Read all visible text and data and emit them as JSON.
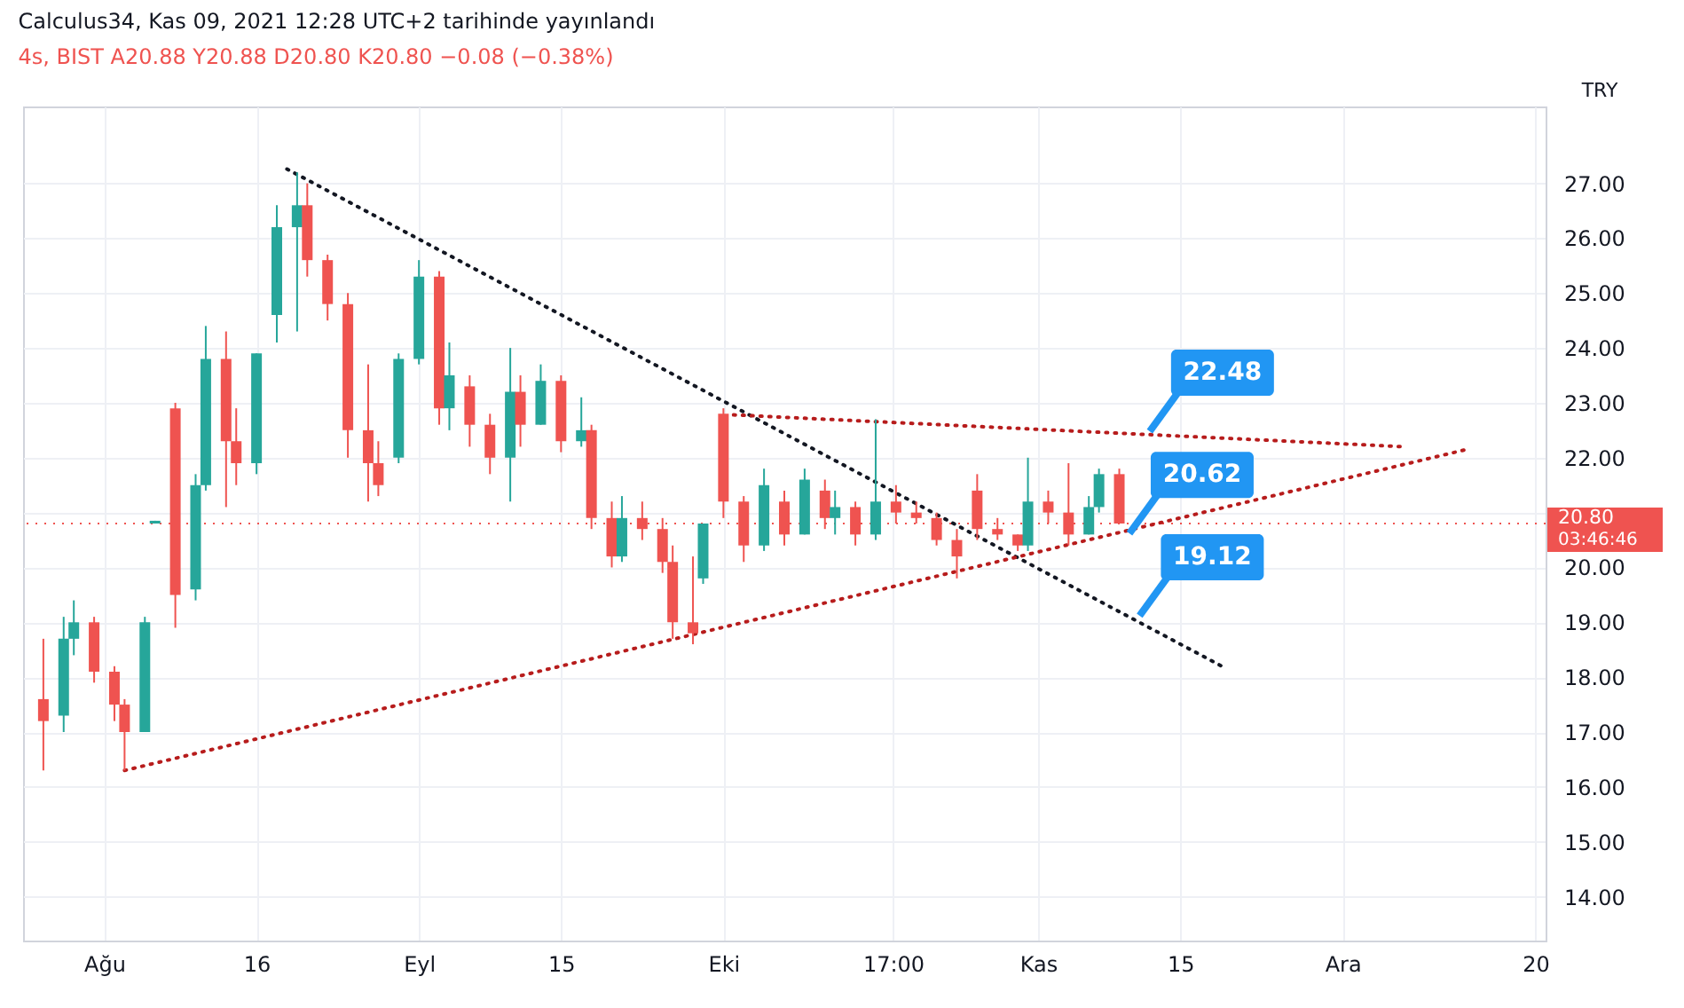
{
  "chart_data": {
    "type": "candlestick",
    "title": "Calculus34, Kas 09, 2021 12:28 UTC+2 tarihinde yayınlandı",
    "subtitle": "4s, BIST  A20.88  Y20.88  D20.80  K20.80  −0.08 (−0.38%)",
    "ylabel": "TRY",
    "x": [
      "2021-07-26",
      "2021-07-28",
      "2021-07-29",
      "2021-07-31",
      "2021-08-02",
      "2021-08-03",
      "2021-08-05",
      "2021-08-06",
      "2021-08-08",
      "2021-08-10",
      "2021-08-11",
      "2021-08-13",
      "2021-08-14",
      "2021-08-16",
      "2021-08-18",
      "2021-08-20",
      "2021-08-21",
      "2021-08-23",
      "2021-08-25",
      "2021-08-27",
      "2021-08-28",
      "2021-08-30",
      "2021-09-01",
      "2021-09-03",
      "2021-09-04",
      "2021-09-06",
      "2021-09-08",
      "2021-09-10",
      "2021-09-11",
      "2021-09-13",
      "2021-09-15",
      "2021-09-17",
      "2021-09-18",
      "2021-09-20",
      "2021-09-21",
      "2021-09-23",
      "2021-09-25",
      "2021-09-26",
      "2021-09-28",
      "2021-09-29",
      "2021-10-01",
      "2021-10-03",
      "2021-10-05",
      "2021-10-07",
      "2021-10-09",
      "2021-10-11",
      "2021-10-12",
      "2021-10-14",
      "2021-10-16",
      "2021-10-18",
      "2021-10-20",
      "2021-10-22",
      "2021-10-24",
      "2021-10-26",
      "2021-10-28",
      "2021-10-30",
      "2021-10-31",
      "2021-11-02",
      "2021-11-04",
      "2021-11-06",
      "2021-11-07",
      "2021-11-09"
    ],
    "ohlc": [
      [
        17.6,
        18.7,
        16.3,
        17.2
      ],
      [
        17.3,
        19.1,
        17.0,
        18.7
      ],
      [
        18.7,
        19.4,
        18.4,
        19.0
      ],
      [
        19.0,
        19.1,
        17.9,
        18.1
      ],
      [
        18.1,
        18.2,
        17.2,
        17.5
      ],
      [
        17.5,
        17.6,
        16.3,
        17.0
      ],
      [
        17.0,
        19.1,
        17.0,
        19.0
      ],
      [
        20.8,
        20.85,
        20.8,
        20.85
      ],
      [
        22.9,
        23.0,
        18.9,
        19.5
      ],
      [
        19.6,
        21.7,
        19.4,
        21.5
      ],
      [
        21.5,
        24.4,
        21.4,
        23.8
      ],
      [
        23.8,
        24.3,
        21.1,
        22.3
      ],
      [
        22.3,
        22.9,
        21.5,
        21.9
      ],
      [
        21.9,
        23.9,
        21.7,
        23.9
      ],
      [
        24.6,
        26.6,
        24.1,
        26.2
      ],
      [
        26.2,
        27.2,
        24.3,
        26.6
      ],
      [
        26.6,
        27.0,
        25.3,
        25.6
      ],
      [
        25.6,
        25.7,
        24.5,
        24.8
      ],
      [
        24.8,
        25.0,
        22.0,
        22.5
      ],
      [
        22.5,
        23.7,
        21.2,
        21.9
      ],
      [
        21.9,
        22.3,
        21.3,
        21.5
      ],
      [
        22.0,
        23.9,
        21.9,
        23.8
      ],
      [
        23.8,
        25.6,
        23.7,
        25.3
      ],
      [
        25.3,
        25.4,
        22.6,
        22.9
      ],
      [
        22.9,
        24.1,
        22.5,
        23.5
      ],
      [
        23.3,
        23.5,
        22.2,
        22.6
      ],
      [
        22.6,
        22.8,
        21.7,
        22.0
      ],
      [
        22.0,
        24.0,
        21.2,
        23.2
      ],
      [
        23.2,
        23.5,
        22.2,
        22.6
      ],
      [
        22.6,
        23.7,
        22.6,
        23.4
      ],
      [
        23.4,
        23.5,
        22.1,
        22.3
      ],
      [
        22.3,
        23.1,
        22.2,
        22.5
      ],
      [
        22.5,
        22.6,
        20.7,
        20.9
      ],
      [
        20.9,
        21.2,
        20.0,
        20.2
      ],
      [
        20.2,
        21.3,
        20.1,
        20.9
      ],
      [
        20.9,
        21.2,
        20.5,
        20.7
      ],
      [
        20.7,
        20.9,
        19.9,
        20.1
      ],
      [
        20.1,
        20.4,
        18.7,
        19.0
      ],
      [
        19.0,
        20.2,
        18.6,
        18.8
      ],
      [
        19.8,
        20.8,
        19.7,
        20.8
      ],
      [
        22.8,
        22.9,
        20.9,
        21.2
      ],
      [
        21.2,
        21.3,
        20.1,
        20.4
      ],
      [
        20.4,
        21.8,
        20.3,
        21.5
      ],
      [
        21.2,
        21.4,
        20.4,
        20.6
      ],
      [
        20.6,
        21.8,
        20.6,
        21.6
      ],
      [
        21.4,
        21.6,
        20.7,
        20.9
      ],
      [
        20.9,
        21.4,
        20.6,
        21.1
      ],
      [
        21.1,
        21.2,
        20.4,
        20.6
      ],
      [
        20.6,
        22.7,
        20.5,
        21.2
      ],
      [
        21.2,
        21.5,
        20.8,
        21.0
      ],
      [
        21.0,
        21.2,
        20.8,
        20.9
      ],
      [
        20.9,
        21.0,
        20.4,
        20.5
      ],
      [
        20.5,
        20.7,
        19.8,
        20.2
      ],
      [
        21.4,
        21.7,
        20.5,
        20.7
      ],
      [
        20.7,
        20.9,
        20.5,
        20.6
      ],
      [
        20.6,
        20.6,
        20.3,
        20.4
      ],
      [
        20.4,
        22.0,
        20.3,
        21.2
      ],
      [
        21.2,
        21.4,
        20.8,
        21.0
      ],
      [
        21.0,
        21.9,
        20.4,
        20.6
      ],
      [
        20.6,
        21.3,
        20.6,
        21.1
      ],
      [
        21.1,
        21.8,
        21.0,
        21.7
      ],
      [
        21.7,
        21.8,
        20.8,
        20.8
      ]
    ],
    "colors": [
      "#ef5350",
      "#26a69a",
      "#26a69a",
      "#ef5350",
      "#ef5350",
      "#ef5350",
      "#26a69a",
      "#26a69a",
      "#ef5350",
      "#26a69a",
      "#26a69a",
      "#ef5350",
      "#ef5350",
      "#26a69a",
      "#26a69a",
      "#26a69a",
      "#ef5350",
      "#ef5350",
      "#ef5350",
      "#ef5350",
      "#ef5350",
      "#26a69a",
      "#26a69a",
      "#ef5350",
      "#26a69a",
      "#ef5350",
      "#ef5350",
      "#26a69a",
      "#ef5350",
      "#26a69a",
      "#ef5350",
      "#26a69a",
      "#ef5350",
      "#ef5350",
      "#26a69a",
      "#ef5350",
      "#ef5350",
      "#ef5350",
      "#ef5350",
      "#26a69a",
      "#ef5350",
      "#ef5350",
      "#26a69a",
      "#ef5350",
      "#26a69a",
      "#ef5350",
      "#26a69a",
      "#ef5350",
      "#26a69a",
      "#ef5350",
      "#ef5350",
      "#ef5350",
      "#ef5350",
      "#ef5350",
      "#ef5350",
      "#ef5350",
      "#26a69a",
      "#ef5350",
      "#ef5350",
      "#26a69a",
      "#26a69a",
      "#ef5350"
    ],
    "series": [
      {
        "type": "line",
        "x": [
          "2021-08-19",
          "2021-11-19"
        ],
        "values": [
          27.26,
          18.21
        ],
        "color": "#131722"
      },
      {
        "type": "line",
        "x": [
          "2021-08-03",
          "2021-12-13"
        ],
        "values": [
          16.3,
          22.14
        ],
        "color": "#b71c1c"
      },
      {
        "type": "line",
        "x": [
          "2021-10-02",
          "2021-12-07"
        ],
        "values": [
          22.78,
          22.2
        ],
        "color": "#b71c1c"
      }
    ],
    "line_style": "dotted",
    "annotations": [
      {
        "text": "22.48",
        "x": "2021-11-12",
        "y": 22.48
      },
      {
        "text": "20.62",
        "x": "2021-11-10",
        "y": 20.62
      },
      {
        "text": "19.12",
        "x": "2021-11-11",
        "y": 19.12
      },
      "03:46:46"
    ],
    "ref_lines": [
      {
        "axis": "y",
        "value": 20.8,
        "label": "20.80",
        "color": "#ef5350",
        "line_style": "dotted"
      }
    ],
    "xlim": [
      "2021-07-24",
      "2021-12-21"
    ],
    "xticks": [
      {
        "value": "2021-08-01",
        "label": "Ağu"
      },
      {
        "value": "2021-08-16",
        "label": "16"
      },
      {
        "value": "2021-09-01",
        "label": "Eyl"
      },
      {
        "value": "2021-09-15",
        "label": "15"
      },
      {
        "value": "2021-10-01",
        "label": "Eki"
      },
      {
        "value": "2021-10-17T17:00",
        "label": "17:00"
      },
      {
        "value": "2021-11-01",
        "label": "Kas"
      },
      {
        "value": "2021-11-15",
        "label": "15"
      },
      {
        "value": "2021-12-01",
        "label": "Ara"
      },
      {
        "value": "2021-12-20",
        "label": "20"
      }
    ],
    "ylim": [
      13.2,
      28.4
    ],
    "yticks": [
      {
        "value": 14,
        "label": "14.00"
      },
      {
        "value": 15,
        "label": "15.00"
      },
      {
        "value": 16,
        "label": "16.00"
      },
      {
        "value": 17,
        "label": "17.00"
      },
      {
        "value": 18,
        "label": "18.00"
      },
      {
        "value": 19,
        "label": "19.00"
      },
      {
        "value": 20,
        "label": "20.00"
      },
      {
        "value": 21,
        "label": null
      },
      {
        "value": 22,
        "label": "22.00"
      },
      {
        "value": 23,
        "label": "23.00"
      },
      {
        "value": 24,
        "label": "24.00"
      },
      {
        "value": 25,
        "label": "25.00"
      },
      {
        "value": 26,
        "label": "26.00"
      },
      {
        "value": 27,
        "label": "27.00"
      }
    ],
    "grid": true
  }
}
